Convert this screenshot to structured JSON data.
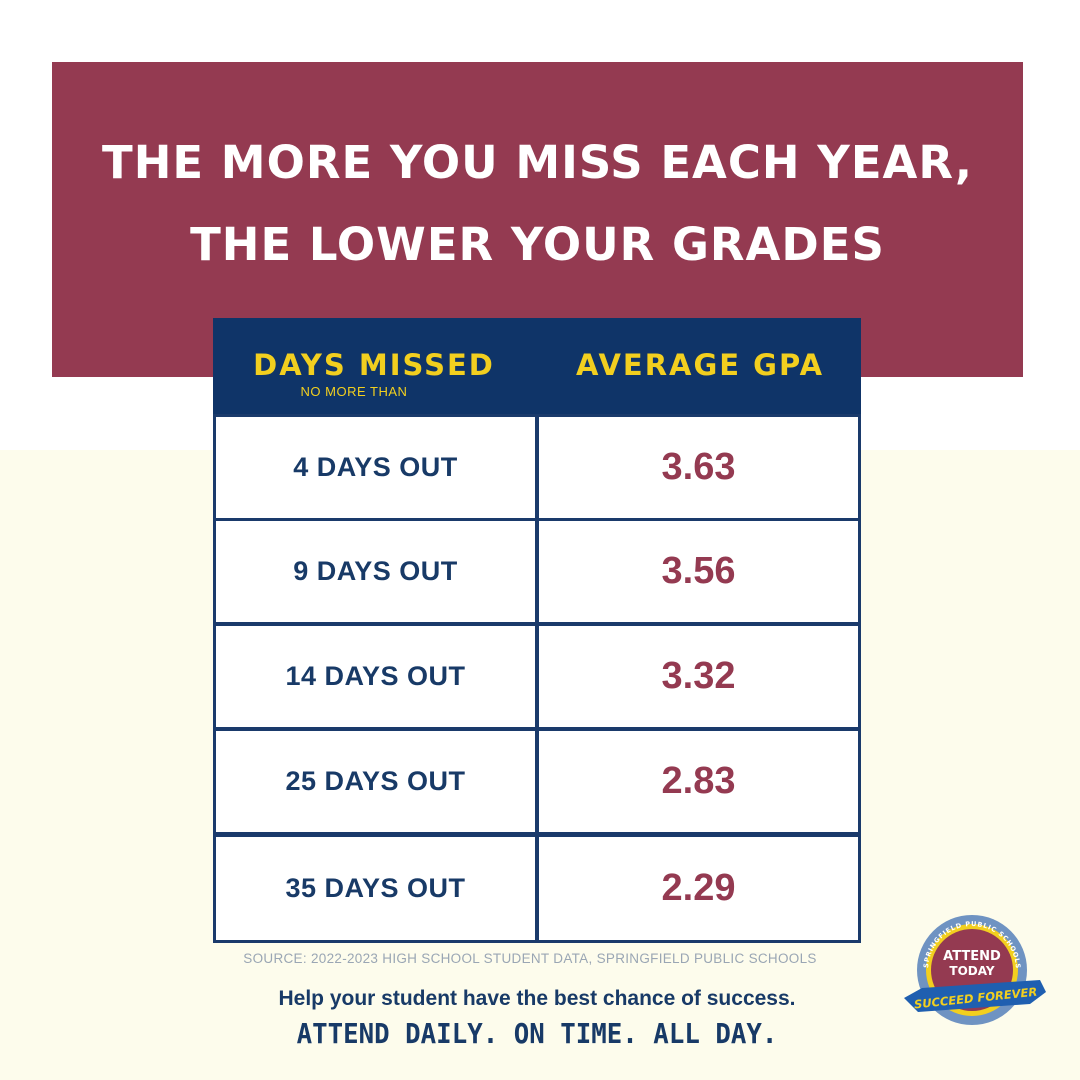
{
  "title": {
    "line1": "THE MORE YOU MISS EACH YEAR,",
    "line2": "THE LOWER YOUR GRADES"
  },
  "table": {
    "header_days": "DAYS MISSED",
    "header_days_sub": "NO MORE THAN",
    "header_gpa": "AVERAGE GPA",
    "rows": [
      {
        "days": "4 DAYS OUT",
        "gpa": "3.63"
      },
      {
        "days": "9 DAYS OUT",
        "gpa": "3.56"
      },
      {
        "days": "14 DAYS OUT",
        "gpa": "3.32"
      },
      {
        "days": "25 DAYS OUT",
        "gpa": "2.83"
      },
      {
        "days": "35 DAYS OUT",
        "gpa": "2.29"
      }
    ]
  },
  "source": "SOURCE: 2022-2023 HIGH SCHOOL STUDENT DATA, SPRINGFIELD PUBLIC SCHOOLS",
  "help_text": "Help your student have the best chance of success.",
  "cta": "ATTEND DAILY. ON TIME. ALL DAY.",
  "logo": {
    "ring_text": "SPRINGFIELD PUBLIC SCHOOLS",
    "line1": "ATTEND",
    "line2": "TODAY",
    "ribbon": "SUCCEED FOREVER"
  },
  "colors": {
    "maroon": "#943a51",
    "navy": "#0f3468",
    "gold": "#f2cf1f",
    "cream": "#fdfcec"
  }
}
